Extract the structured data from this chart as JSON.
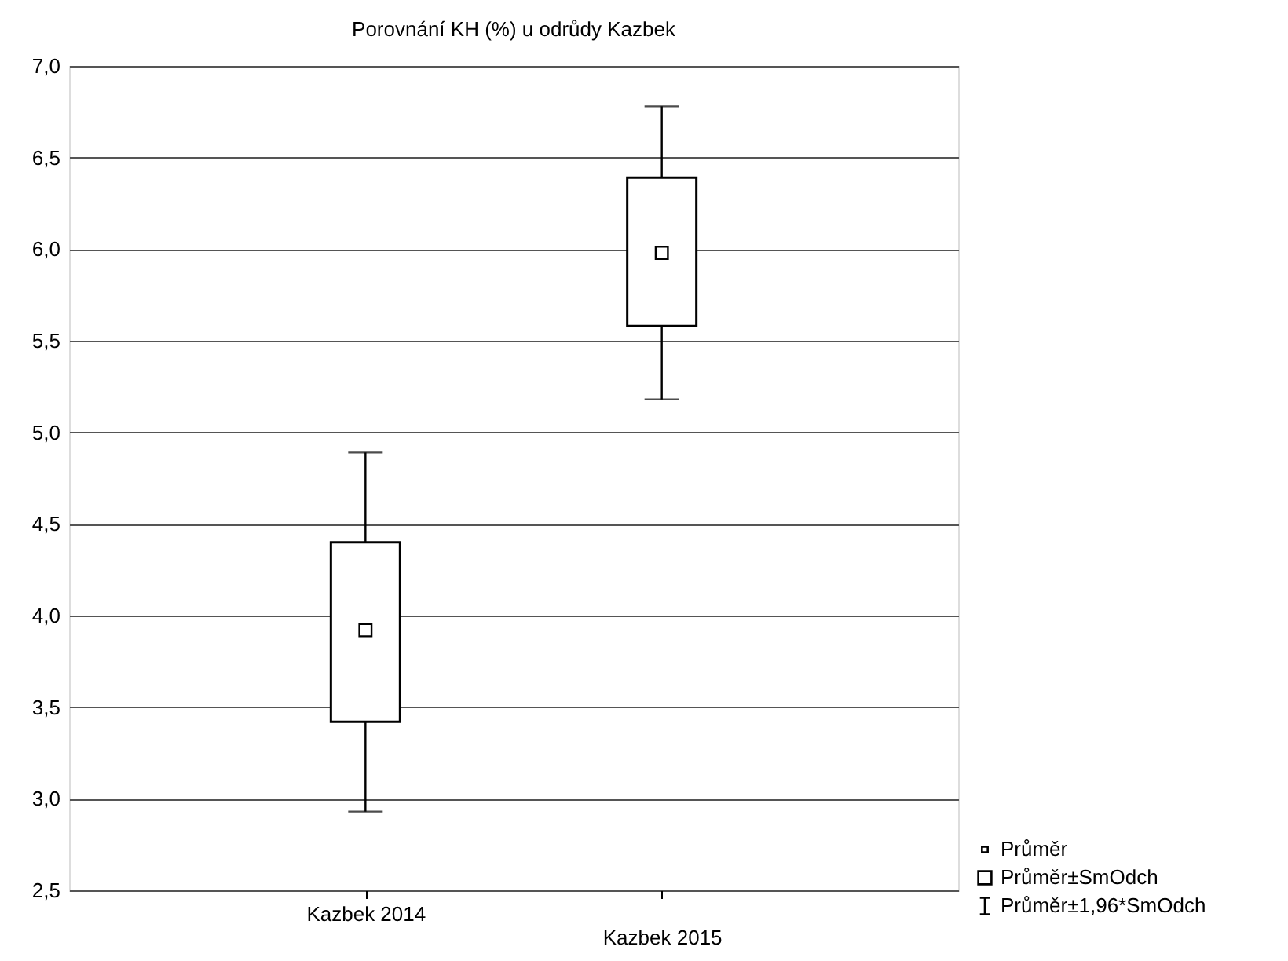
{
  "chart_data": {
    "type": "box",
    "title": "Porovnání KH (%) u odrůdy Kazbek",
    "categories": [
      "Kazbek 2014",
      "Kazbek 2015"
    ],
    "boxes": [
      {
        "low": 2.93,
        "q1": 3.42,
        "median": 3.92,
        "q3": 4.4,
        "high": 4.89
      },
      {
        "low": 5.18,
        "q1": 5.58,
        "median": 5.98,
        "q3": 6.39,
        "high": 6.78
      }
    ],
    "ylim": [
      2.5,
      7.0
    ],
    "yticks": [
      {
        "value": 2.5,
        "label": "2,5"
      },
      {
        "value": 3.0,
        "label": "3,0"
      },
      {
        "value": 3.5,
        "label": "3,5"
      },
      {
        "value": 4.0,
        "label": "4,0"
      },
      {
        "value": 4.5,
        "label": "4,5"
      },
      {
        "value": 5.0,
        "label": "5,0"
      },
      {
        "value": 5.5,
        "label": "5,5"
      },
      {
        "value": 6.0,
        "label": "6,0"
      },
      {
        "value": 6.5,
        "label": "6,5"
      },
      {
        "value": 7.0,
        "label": "7,0"
      }
    ],
    "grid": "y",
    "annotations": [
      "Průměr",
      "Průměr±SmOdch",
      "Průměr±1,96*SmOdch"
    ]
  }
}
